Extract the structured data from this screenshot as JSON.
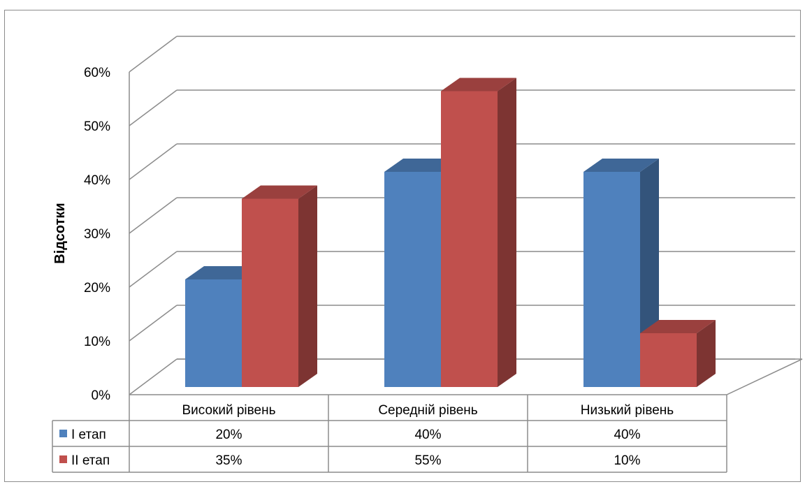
{
  "chart_data": {
    "type": "bar",
    "variant": "3d-clustered-column-with-data-table",
    "title": "",
    "xlabel": "",
    "ylabel": "Відсотки",
    "categories": [
      "Високий рівень",
      "Середній рівень",
      "Низький рівень"
    ],
    "series": [
      {
        "name": "І етап",
        "values": [
          20,
          40,
          40
        ],
        "labels": [
          "20%",
          "40%",
          "40%"
        ],
        "color": "#4f81bd"
      },
      {
        "name": "ІІ етап",
        "values": [
          35,
          55,
          10
        ],
        "labels": [
          "35%",
          "55%",
          "10%"
        ],
        "color": "#c0504d"
      }
    ],
    "ylim": [
      0,
      60
    ],
    "yticks": [
      "0%",
      "10%",
      "20%",
      "30%",
      "40%",
      "50%",
      "60%"
    ],
    "grid": true,
    "legend": "data-table"
  }
}
